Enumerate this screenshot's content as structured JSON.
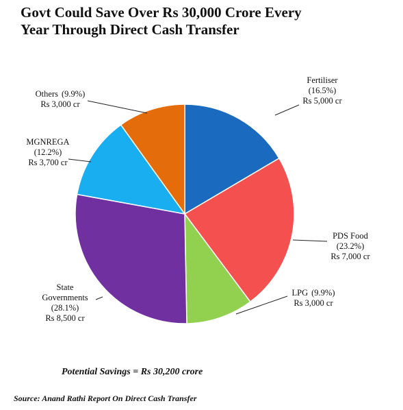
{
  "chart_data": {
    "type": "pie",
    "title_lines": [
      "Govt Could Save Over Rs 30,000 Crore Every",
      "Year Through Direct Cash Transfer"
    ],
    "categories": [
      "Fertiliser",
      "PDS Food",
      "LPG",
      "State Governments",
      "MGNREGA",
      "Others"
    ],
    "values": [
      16.5,
      23.2,
      9.9,
      28.1,
      12.2,
      9.9
    ],
    "value_labels": [
      "(16.5%)",
      "(23.2%)",
      "(9.9%)",
      "(28.1%)",
      "(12.2%)",
      "(9.9%)"
    ],
    "amounts": [
      5000,
      7000,
      3000,
      8500,
      3700,
      3000
    ],
    "amount_labels": [
      "Rs 5,000 cr",
      "Rs 7,000 cr",
      "Rs 3,000 cr",
      "Rs 8,500 cr",
      "Rs 3,700 cr",
      "Rs 3,000 cr"
    ],
    "colors": [
      "#1a6bbf",
      "#f55050",
      "#92d050",
      "#7030a0",
      "#19aef0",
      "#e46c0a"
    ],
    "annotation": "Potential Savings = Rs 30,200 crore",
    "source": "Source: Anand Rathi Report On Direct Cash Transfer"
  }
}
